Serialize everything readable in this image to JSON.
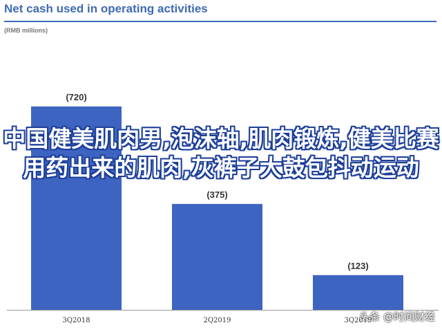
{
  "header": {
    "title": "Net cash used in operating activities",
    "subtitle": "(RMB millions)"
  },
  "overlay_text": "中国健美肌肉男,泡沫轴,肌肉锻炼,健美比赛用药出来的肌肉,灰裤子大鼓包抖动运动",
  "watermark": "头条 @时间财经",
  "colors": {
    "bar": "#3e64c2",
    "title": "#3f6ab4",
    "rule": "#3f6ab4",
    "axis": "#999999",
    "text": "#333333"
  },
  "chart_data": {
    "type": "bar",
    "categories": [
      "3Q2018",
      "2Q2019",
      "3Q2019"
    ],
    "values": [
      720,
      375,
      123
    ],
    "data_labels": [
      "(720)",
      "(375)",
      "(123)"
    ],
    "xlabel": "",
    "ylabel": "",
    "ylim": [
      0,
      950
    ],
    "grid": false,
    "legend": "none"
  }
}
